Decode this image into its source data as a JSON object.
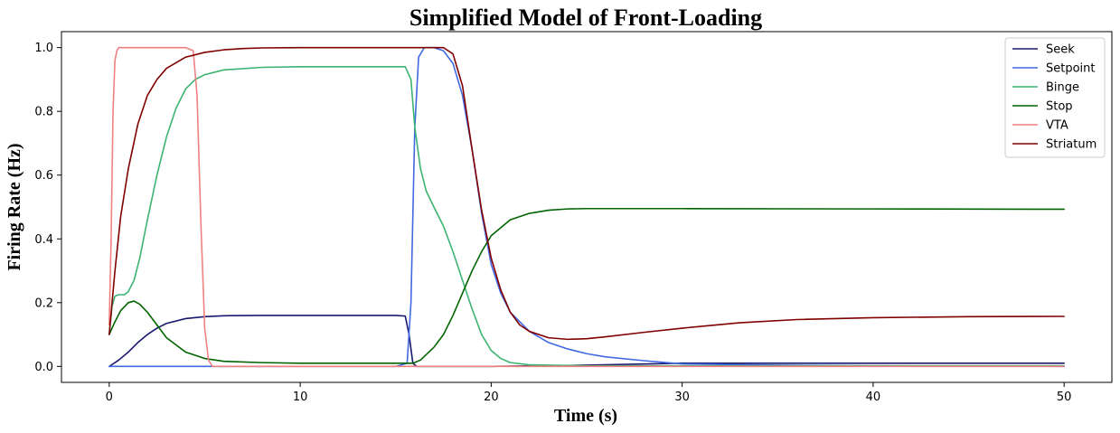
{
  "chart_data": {
    "type": "line",
    "title": "Simplified Model of Front-Loading",
    "xlabel": "Time (s)",
    "ylabel": "Firing Rate (Hz)",
    "xlim": [
      -2.5,
      52.5
    ],
    "ylim": [
      -0.05,
      1.05
    ],
    "xticks": [
      0,
      10,
      20,
      30,
      40,
      50
    ],
    "xtick_labels": [
      "0",
      "10",
      "20",
      "30",
      "40",
      "50"
    ],
    "yticks": [
      0.0,
      0.2,
      0.4,
      0.6,
      0.8,
      1.0
    ],
    "ytick_labels": [
      "0.0",
      "0.2",
      "0.4",
      "0.6",
      "0.8",
      "1.0"
    ],
    "grid": false,
    "legend_position": "top-right",
    "series": [
      {
        "name": "Seek",
        "color": "#191970",
        "x": [
          0,
          0.5,
          1,
          1.5,
          2,
          2.5,
          3,
          4,
          5,
          6,
          8,
          10,
          12,
          14,
          15,
          15.5,
          15.7,
          15.9,
          16.1,
          17,
          20,
          25,
          30,
          40,
          50
        ],
        "y": [
          0,
          0.02,
          0.045,
          0.075,
          0.1,
          0.12,
          0.135,
          0.15,
          0.156,
          0.159,
          0.16,
          0.16,
          0.16,
          0.16,
          0.16,
          0.158,
          0.1,
          0.01,
          0.0,
          0.0,
          0.0,
          0.004,
          0.01,
          0.01,
          0.01
        ]
      },
      {
        "name": "Setpoint",
        "color": "#4169E1",
        "x": [
          0,
          15,
          15.6,
          15.8,
          16.0,
          16.2,
          16.5,
          17,
          17.5,
          18,
          18.5,
          19,
          19.5,
          20,
          20.5,
          21,
          22,
          23,
          24,
          25,
          26,
          28,
          30,
          35,
          40,
          50
        ],
        "y": [
          0,
          0,
          0.01,
          0.2,
          0.75,
          0.97,
          1.0,
          1.0,
          0.99,
          0.95,
          0.85,
          0.68,
          0.48,
          0.32,
          0.23,
          0.17,
          0.11,
          0.075,
          0.055,
          0.04,
          0.03,
          0.018,
          0.008,
          0.004,
          0.002,
          0.0
        ]
      },
      {
        "name": "Binge",
        "color": "#3CB371",
        "x": [
          0,
          0.15,
          0.3,
          0.5,
          0.8,
          1,
          1.3,
          1.6,
          2,
          2.5,
          3,
          3.5,
          4,
          4.5,
          5,
          6,
          8,
          10,
          12,
          14,
          15.5,
          15.8,
          16,
          16.3,
          16.6,
          17,
          17.5,
          18,
          18.5,
          19,
          19.5,
          20,
          20.5,
          21,
          22,
          25,
          30,
          50
        ],
        "y": [
          0.1,
          0.19,
          0.22,
          0.225,
          0.225,
          0.235,
          0.27,
          0.34,
          0.46,
          0.6,
          0.72,
          0.81,
          0.87,
          0.9,
          0.915,
          0.93,
          0.938,
          0.94,
          0.94,
          0.94,
          0.94,
          0.9,
          0.75,
          0.62,
          0.55,
          0.5,
          0.44,
          0.36,
          0.27,
          0.18,
          0.1,
          0.05,
          0.025,
          0.012,
          0.005,
          0.002,
          0.002,
          0.002
        ]
      },
      {
        "name": "Stop",
        "color": "#006400",
        "x": [
          0,
          0.3,
          0.6,
          1,
          1.3,
          1.6,
          2,
          2.5,
          3,
          4,
          5,
          6,
          8,
          10,
          12,
          14,
          15.5,
          15.9,
          16.3,
          17,
          17.5,
          18,
          18.5,
          19,
          19.5,
          20,
          21,
          22,
          23,
          24,
          25,
          27,
          30,
          40,
          50
        ],
        "y": [
          0.1,
          0.14,
          0.175,
          0.2,
          0.205,
          0.195,
          0.17,
          0.13,
          0.09,
          0.045,
          0.025,
          0.016,
          0.012,
          0.01,
          0.01,
          0.01,
          0.01,
          0.01,
          0.02,
          0.06,
          0.1,
          0.16,
          0.23,
          0.3,
          0.36,
          0.41,
          0.46,
          0.48,
          0.49,
          0.494,
          0.495,
          0.495,
          0.495,
          0.494,
          0.493
        ]
      },
      {
        "name": "VTA",
        "color": "#F08080",
        "x": [
          0,
          0.1,
          0.2,
          0.3,
          0.4,
          0.5,
          0.7,
          1,
          2,
          3,
          4,
          4.4,
          4.6,
          4.8,
          5.0,
          5.2,
          5.4,
          6,
          10,
          20,
          30,
          50
        ],
        "y": [
          0.13,
          0.4,
          0.8,
          0.96,
          0.99,
          1.0,
          1.0,
          1.0,
          1.0,
          1.0,
          1.0,
          0.99,
          0.85,
          0.45,
          0.12,
          0.02,
          0.0,
          0.0,
          0.0,
          0.0,
          0.0,
          0.0
        ]
      },
      {
        "name": "Striatum",
        "color": "#800000",
        "x": [
          0,
          0.3,
          0.6,
          1,
          1.5,
          2,
          2.5,
          3,
          4,
          5,
          6,
          7,
          8,
          10,
          12,
          15,
          16,
          17,
          17.5,
          18,
          18.5,
          19,
          19.5,
          20,
          20.5,
          21,
          21.5,
          22,
          23,
          24,
          25,
          26,
          28,
          30,
          33,
          36,
          40,
          45,
          50
        ],
        "y": [
          0.1,
          0.3,
          0.47,
          0.62,
          0.76,
          0.85,
          0.9,
          0.935,
          0.97,
          0.985,
          0.993,
          0.997,
          0.999,
          1.0,
          1.0,
          1.0,
          1.0,
          1.0,
          1.0,
          0.98,
          0.88,
          0.68,
          0.49,
          0.34,
          0.24,
          0.17,
          0.13,
          0.11,
          0.09,
          0.085,
          0.087,
          0.093,
          0.107,
          0.12,
          0.137,
          0.147,
          0.153,
          0.156,
          0.157
        ]
      }
    ]
  }
}
